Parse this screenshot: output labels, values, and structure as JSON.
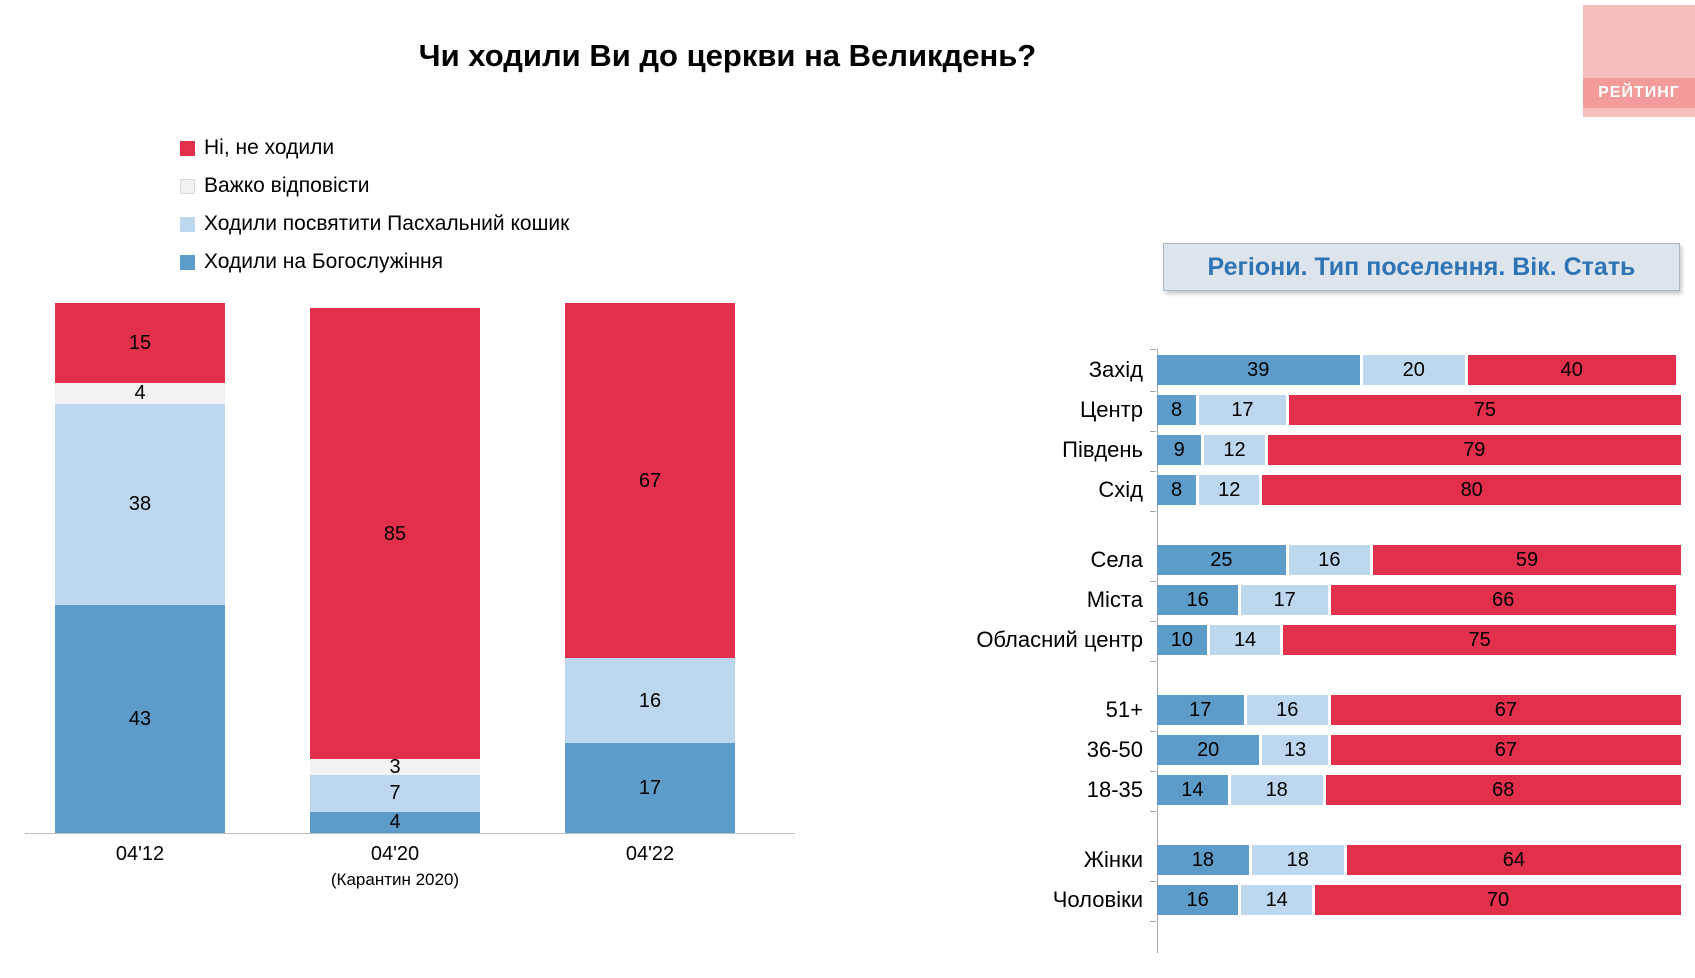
{
  "title": "Чи ходили Ви до церкви на Великдень?",
  "logo": {
    "text": "РЕЙТИНГ"
  },
  "colors": {
    "red": "#E2304C",
    "white": "#F2F2F2",
    "light_blue": "#BDD7EE",
    "dark_blue": "#5D9BC9",
    "panel_title_text": "#2E74B5",
    "axis": "#A6A6A6"
  },
  "legend": [
    {
      "label": "Ні, не ходили",
      "color_key": "red"
    },
    {
      "label": "Важко відповісти",
      "color_key": "white"
    },
    {
      "label": "Ходили посвятити Пасхальний кошик",
      "color_key": "light_blue"
    },
    {
      "label": "Ходили на Богослужіння",
      "color_key": "dark_blue"
    }
  ],
  "chart_data": [
    {
      "type": "bar",
      "stacked": true,
      "orientation": "vertical",
      "title": "Чи ходили Ви до церкви на Великдень?",
      "categories": [
        "04'12",
        "04'20",
        "04'22"
      ],
      "category_notes": [
        "",
        "(Карантин 2020)",
        ""
      ],
      "ylim": [
        0,
        100
      ],
      "series": [
        {
          "name": "Ходили на Богослужіння",
          "color_key": "dark_blue",
          "values": [
            43,
            4,
            17
          ]
        },
        {
          "name": "Ходили посвятити Пасхальний кошик",
          "color_key": "light_blue",
          "values": [
            38,
            7,
            16
          ]
        },
        {
          "name": "Важко відповісти",
          "color_key": "white",
          "values": [
            4,
            3,
            0
          ]
        },
        {
          "name": "Ні, не ходили",
          "color_key": "red",
          "values": [
            15,
            85,
            67
          ]
        }
      ]
    },
    {
      "type": "bar",
      "stacked": true,
      "orientation": "horizontal",
      "title": "Регіони. Тип поселення. Вік. Стать",
      "xlim": [
        0,
        100
      ],
      "series_names": [
        "Ходили на Богослужіння",
        "Ходили посвятити Пасхальний кошик",
        "Ні, не ходили"
      ],
      "series_color_keys": [
        "dark_blue",
        "light_blue",
        "red"
      ],
      "groups": [
        [
          {
            "label": "Захід",
            "values": [
              39,
              20,
              40
            ]
          },
          {
            "label": "Центр",
            "values": [
              8,
              17,
              75
            ]
          },
          {
            "label": "Південь",
            "values": [
              9,
              12,
              79
            ]
          },
          {
            "label": "Схід",
            "values": [
              8,
              12,
              80
            ]
          }
        ],
        [
          {
            "label": "Села",
            "values": [
              25,
              16,
              59
            ]
          },
          {
            "label": "Міста",
            "values": [
              16,
              17,
              66
            ]
          },
          {
            "label": "Обласний центр",
            "values": [
              10,
              14,
              75
            ]
          }
        ],
        [
          {
            "label": "51+",
            "values": [
              17,
              16,
              67
            ]
          },
          {
            "label": "36-50",
            "values": [
              20,
              13,
              67
            ]
          },
          {
            "label": "18-35",
            "values": [
              14,
              18,
              68
            ]
          }
        ],
        [
          {
            "label": "Жінки",
            "values": [
              18,
              18,
              64
            ]
          },
          {
            "label": "Чоловіки",
            "values": [
              16,
              14,
              70
            ]
          }
        ]
      ]
    }
  ]
}
